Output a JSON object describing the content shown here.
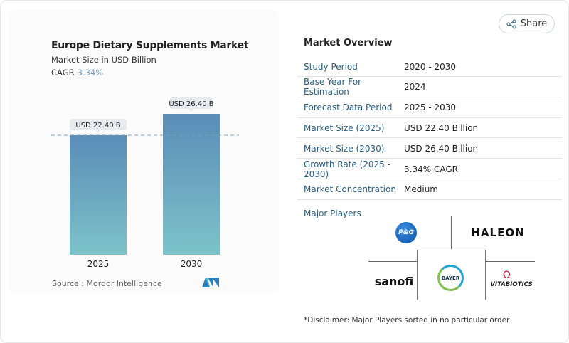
{
  "share_label": "Share",
  "chart": {
    "title": "Europe Dietary Supplements Market",
    "subtitle": "Market Size in USD Billion",
    "cagr_label": "CAGR",
    "cagr_value": "3.34%",
    "source": "Source :  Mordor Intelligence"
  },
  "chart_data": {
    "type": "bar",
    "categories": [
      "2025",
      "2030"
    ],
    "values": [
      22.4,
      26.4
    ],
    "data_labels": [
      "USD 22.40 B",
      "USD 26.40 B"
    ],
    "title": "Europe Dietary Supplements Market",
    "ylabel": "Market Size in USD Billion",
    "grid": false,
    "colors": [
      "#5b8db8",
      "#7cc3c9"
    ]
  },
  "overview": {
    "title": "Market Overview",
    "rows": [
      {
        "k": "Study Period",
        "v": "2020 - 2030"
      },
      {
        "k": "Base Year For Estimation",
        "v": "2024"
      },
      {
        "k": "Forecast Data Period",
        "v": "2025 - 2030"
      },
      {
        "k": "Market Size (2025)",
        "v": "USD 22.40 Billion"
      },
      {
        "k": "Market Size (2030)",
        "v": "USD 26.40 Billion"
      },
      {
        "k": "Growth Rate (2025 - 2030)",
        "v": "3.34% CAGR"
      },
      {
        "k": "Market Concentration",
        "v": "Medium"
      }
    ],
    "major_players_label": "Major Players",
    "players": [
      "P&G",
      "HALEON",
      "sanofi",
      "BAYER",
      "VITABIOTICS"
    ],
    "disclaimer": "*Disclaimer: Major Players sorted in no particular order"
  }
}
